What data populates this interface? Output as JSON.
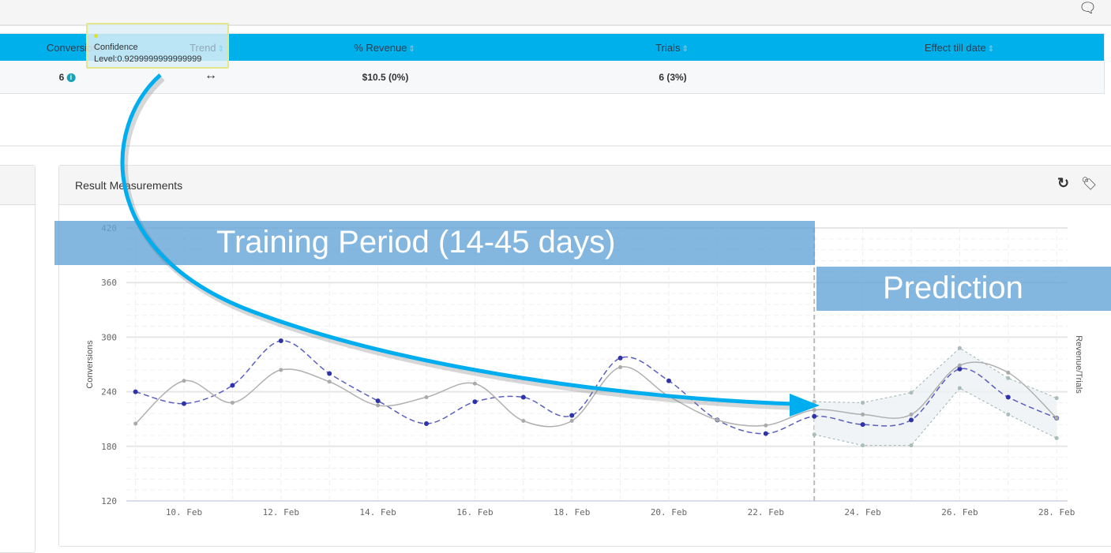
{
  "topbar": {
    "chat_icon": "chat-bubbles-icon"
  },
  "table": {
    "headers": [
      "Conversions",
      "Trend",
      "% Revenue",
      "Trials",
      "Effect till date"
    ],
    "row": {
      "conversions": "6",
      "trend": "↔",
      "revenue": "$10.5  (0%)",
      "trials": "6 (3%)",
      "effect": ""
    }
  },
  "tooltip": {
    "line1": "Confidence",
    "line2": "Level:0.9299999999999999"
  },
  "panel": {
    "title": "Result Measurements",
    "refresh_icon": "refresh-icon",
    "tag_icon": "tag-icon"
  },
  "bands": {
    "training": "Training Period (14-45 days)",
    "prediction": "Prediction"
  },
  "colors": {
    "header": "#00b0ea",
    "arrow": "#00aeef",
    "blue_series": "#3d43b0",
    "gray_series": "#aaaaaa",
    "band": "#64a5d7"
  },
  "chart_data": {
    "type": "line",
    "ylabel": "Conversions",
    "y2label": "Revenue/Trials",
    "ylim": [
      120,
      420
    ],
    "yticks": [
      "120",
      "180",
      "240",
      "300",
      "360",
      "420"
    ],
    "x_days": [
      9,
      10,
      11,
      12,
      13,
      14,
      15,
      16,
      17,
      18,
      19,
      20,
      21,
      22,
      23,
      24,
      25,
      26,
      27,
      28
    ],
    "xticks": [
      "10. Feb",
      "12. Feb",
      "14. Feb",
      "16. Feb",
      "18. Feb",
      "20. Feb",
      "22. Feb",
      "24. Feb",
      "26. Feb",
      "28. Feb"
    ],
    "prediction_start_day": 23,
    "series": [
      {
        "name": "Conversions",
        "style": "dashed",
        "values": [
          240,
          227,
          247,
          296,
          260,
          230,
          205,
          229,
          234,
          214,
          277,
          252,
          209,
          194,
          213,
          204,
          209,
          265,
          234,
          211
        ]
      },
      {
        "name": "Revenue/Trials",
        "style": "solid",
        "values": [
          205,
          252,
          228,
          264,
          251,
          225,
          234,
          249,
          208,
          208,
          267,
          235,
          209,
          203,
          220,
          215,
          215,
          269,
          261,
          211
        ]
      }
    ],
    "confidence_band": {
      "x_days": [
        23,
        24,
        25,
        26,
        27,
        28
      ],
      "upper": [
        229,
        228,
        239,
        288,
        255,
        233
      ],
      "lower": [
        193,
        181,
        181,
        244,
        215,
        189
      ]
    }
  }
}
